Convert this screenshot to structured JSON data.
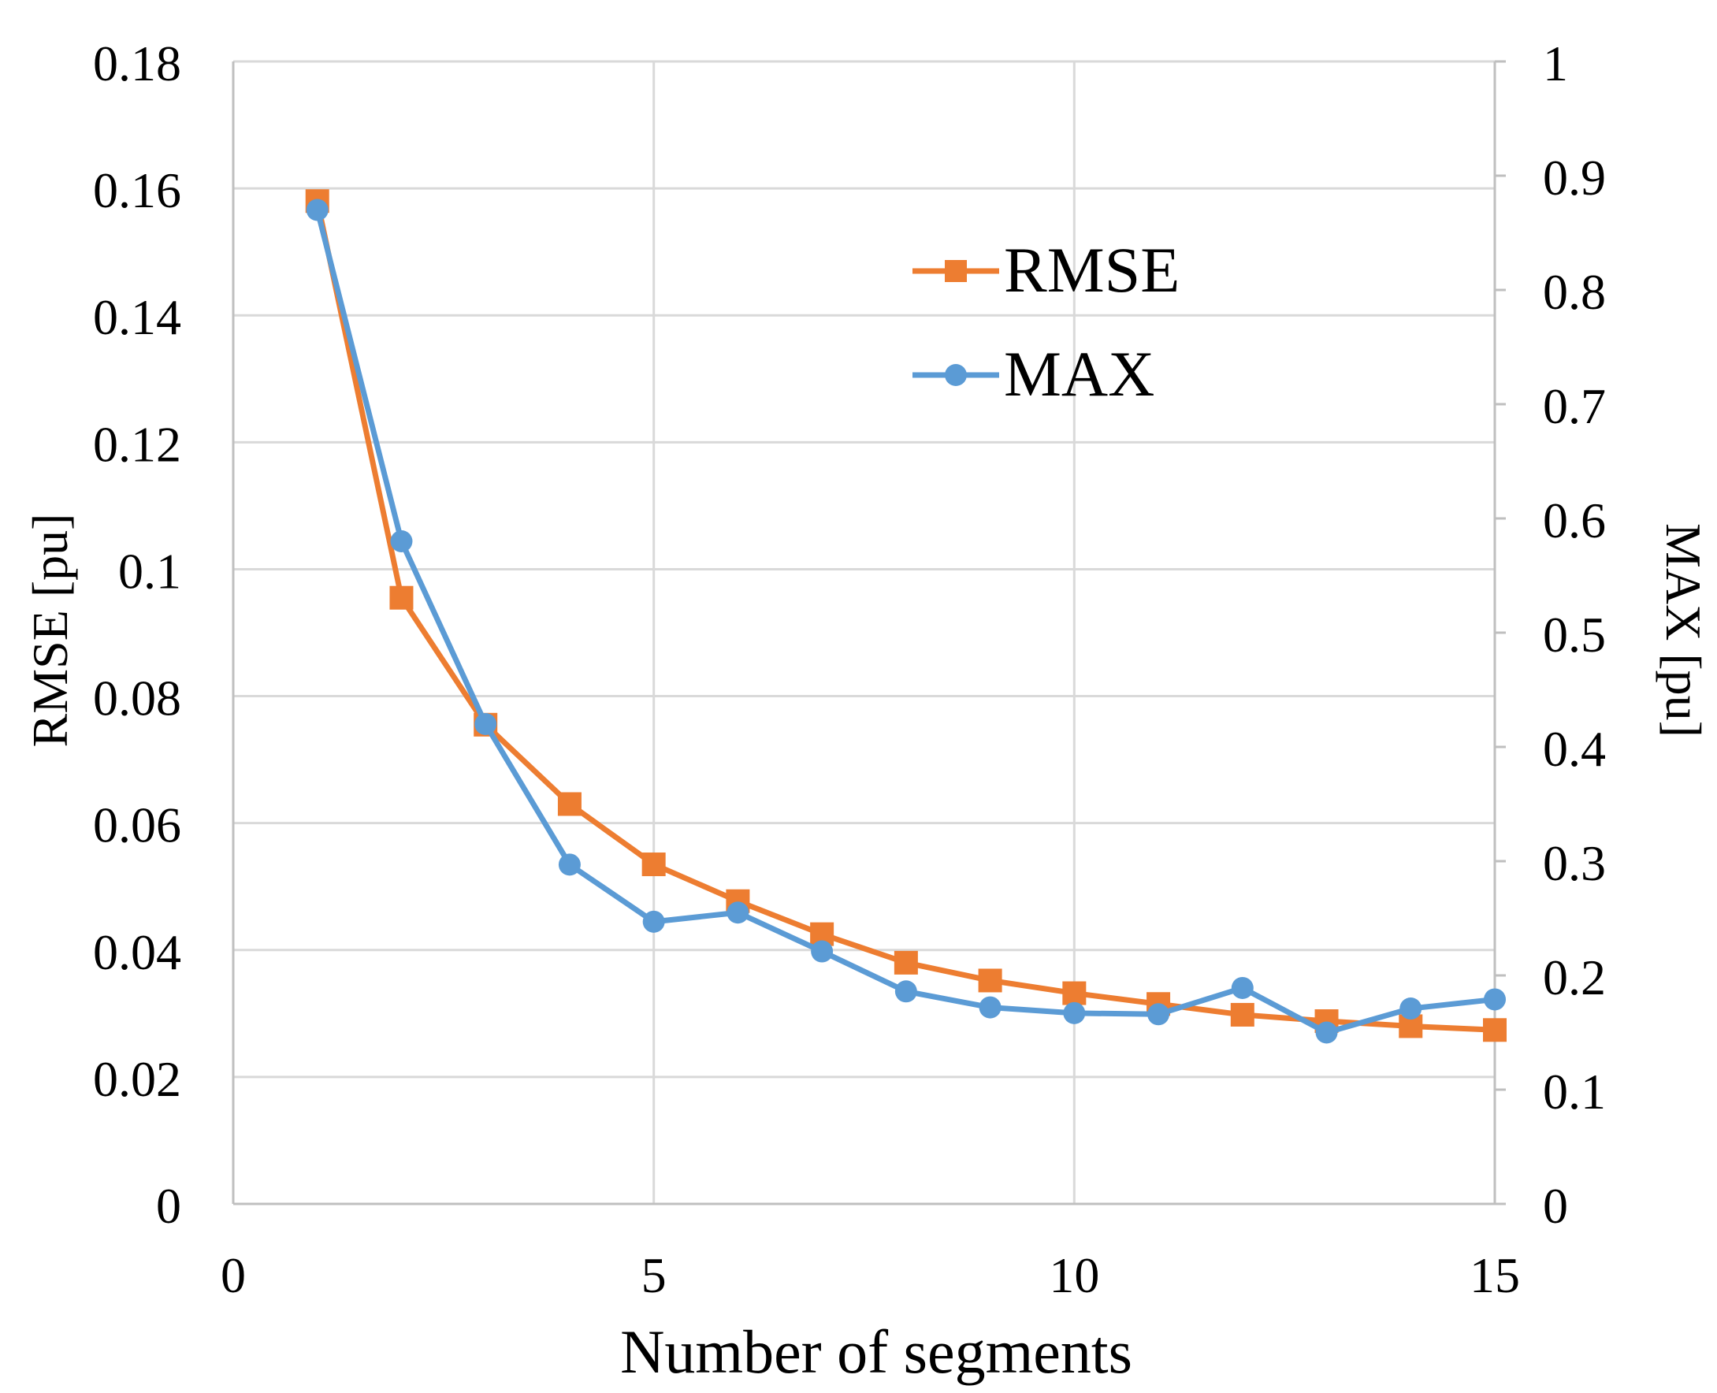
{
  "chart_data": {
    "type": "line",
    "title": "",
    "xlabel": "Number of segments",
    "ylabel": "RMSE [pu]",
    "y2label": "MAX [pu]",
    "xlim": [
      0,
      15
    ],
    "ylim": [
      0,
      0.18
    ],
    "y2lim": [
      0,
      1
    ],
    "x_ticks": [
      0,
      5,
      10,
      15
    ],
    "y_ticks": [
      "0",
      "0.02",
      "0.04",
      "0.06",
      "0.08",
      "0.1",
      "0.12",
      "0.14",
      "0.16",
      "0.18"
    ],
    "y2_ticks": [
      "0",
      "0.1",
      "0.2",
      "0.3",
      "0.4",
      "0.5",
      "0.6",
      "0.7",
      "0.8",
      "0.9",
      "1"
    ],
    "grid": true,
    "legend_position": "top-right",
    "x": [
      1,
      2,
      3,
      4,
      5,
      6,
      7,
      8,
      9,
      10,
      11,
      12,
      13,
      14,
      15
    ],
    "series": [
      {
        "name": "RMSE",
        "axis": "left",
        "marker": "square",
        "color": "#ED7D31",
        "values": [
          0.158,
          0.0955,
          0.0755,
          0.063,
          0.0535,
          0.0477,
          0.0425,
          0.038,
          0.0352,
          0.0332,
          0.0315,
          0.0298,
          0.0288,
          0.028,
          0.0274
        ]
      },
      {
        "name": "MAX",
        "axis": "right",
        "marker": "circle",
        "color": "#5B9BD5",
        "values": [
          0.87,
          0.58,
          0.42,
          0.297,
          0.247,
          0.255,
          0.221,
          0.186,
          0.172,
          0.167,
          0.166,
          0.189,
          0.15,
          0.171,
          0.179
        ]
      }
    ]
  },
  "colors": {
    "grid": "#D9D9D9",
    "axis": "#BFBFBF",
    "text": "#000000"
  }
}
